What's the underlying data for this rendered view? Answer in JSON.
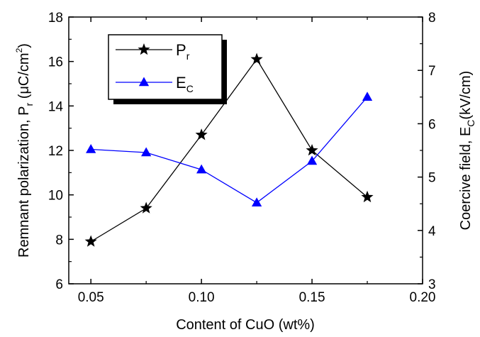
{
  "chart_data": {
    "type": "line",
    "x": [
      0.05,
      0.075,
      0.1,
      0.125,
      0.15,
      0.175
    ],
    "xlabel": "Content of CuO (wt%)",
    "xlim": [
      0.04,
      0.2
    ],
    "x_ticks": [
      "0.05",
      "0.10",
      "0.15",
      "0.20"
    ],
    "x_tick_values": [
      0.05,
      0.1,
      0.15,
      0.2
    ],
    "y_left": {
      "label_main": "Remnant polarization, P",
      "label_sub": "r",
      "label_unit_open": " (μC/cm",
      "label_unit_sup": "2",
      "label_unit_close": ")",
      "ylim": [
        6,
        18
      ],
      "ticks": [
        "6",
        "8",
        "10",
        "12",
        "14",
        "16",
        "18"
      ],
      "tick_values": [
        6,
        8,
        10,
        12,
        14,
        16,
        18
      ]
    },
    "y_right": {
      "label_main": "Coercive field, E",
      "label_sub": "C",
      "label_unit": "(kV/cm)",
      "ylim": [
        3,
        8
      ],
      "ticks": [
        "3",
        "4",
        "5",
        "6",
        "7",
        "8"
      ],
      "tick_values": [
        3,
        4,
        5,
        6,
        7,
        8
      ]
    },
    "series": [
      {
        "name": "P",
        "name_sub": "r",
        "axis": "left",
        "marker": "star",
        "color": "#000000",
        "values": [
          7.9,
          9.4,
          12.7,
          16.1,
          12.0,
          9.9
        ]
      },
      {
        "name": "E",
        "name_sub": "C",
        "axis": "right",
        "marker": "triangle",
        "color": "#0000ff",
        "values": [
          5.52,
          5.46,
          5.14,
          4.52,
          5.3,
          6.5
        ]
      }
    ],
    "legend": "top-left",
    "grid": false
  }
}
